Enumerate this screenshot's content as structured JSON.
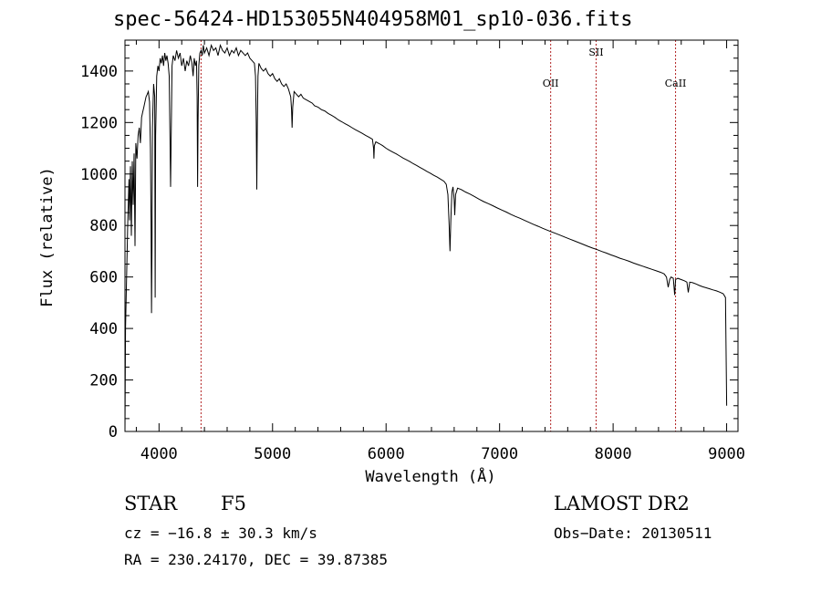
{
  "chart_data": {
    "type": "line",
    "title": "spec-56424-HD153055N404958M01_sp10-036.fits",
    "xlabel": "Wavelength (Å)",
    "ylabel": "Flux (relative)",
    "xlim": [
      3700,
      9100
    ],
    "ylim": [
      0,
      1520
    ],
    "xticks": [
      4000,
      5000,
      6000,
      7000,
      8000,
      9000
    ],
    "yticks": [
      0,
      200,
      400,
      600,
      800,
      1000,
      1200,
      1400
    ],
    "grid": false,
    "line_color": "#000000",
    "marker_color": "#b22222",
    "line_markers": [
      {
        "name": "",
        "wavelength": 4370
      },
      {
        "name": "OII",
        "wavelength": 7450
      },
      {
        "name": "SII",
        "wavelength": 7850
      },
      {
        "name": "CaII",
        "wavelength": 8550
      }
    ],
    "series": [
      {
        "name": "spectrum",
        "points": [
          [
            3700,
            0
          ],
          [
            3705,
            400
          ],
          [
            3715,
            620
          ],
          [
            3725,
            820
          ],
          [
            3735,
            980
          ],
          [
            3740,
            820
          ],
          [
            3748,
            1030
          ],
          [
            3756,
            760
          ],
          [
            3764,
            1050
          ],
          [
            3772,
            880
          ],
          [
            3780,
            1080
          ],
          [
            3788,
            720
          ],
          [
            3796,
            1120
          ],
          [
            3806,
            1060
          ],
          [
            3816,
            1150
          ],
          [
            3826,
            1180
          ],
          [
            3836,
            1120
          ],
          [
            3846,
            1220
          ],
          [
            3856,
            1240
          ],
          [
            3866,
            1260
          ],
          [
            3876,
            1280
          ],
          [
            3886,
            1300
          ],
          [
            3896,
            1310
          ],
          [
            3906,
            1320
          ],
          [
            3916,
            1280
          ],
          [
            3924,
            1100
          ],
          [
            3930,
            820
          ],
          [
            3934,
            460
          ],
          [
            3938,
            700
          ],
          [
            3942,
            1180
          ],
          [
            3952,
            1350
          ],
          [
            3962,
            1300
          ],
          [
            3966,
            520
          ],
          [
            3970,
            1150
          ],
          [
            3980,
            1380
          ],
          [
            3990,
            1420
          ],
          [
            4000,
            1400
          ],
          [
            4010,
            1450
          ],
          [
            4020,
            1430
          ],
          [
            4030,
            1460
          ],
          [
            4040,
            1420
          ],
          [
            4050,
            1470
          ],
          [
            4060,
            1440
          ],
          [
            4070,
            1460
          ],
          [
            4080,
            1430
          ],
          [
            4090,
            1380
          ],
          [
            4098,
            1100
          ],
          [
            4102,
            950
          ],
          [
            4106,
            1100
          ],
          [
            4115,
            1420
          ],
          [
            4125,
            1460
          ],
          [
            4140,
            1440
          ],
          [
            4155,
            1480
          ],
          [
            4170,
            1450
          ],
          [
            4185,
            1470
          ],
          [
            4200,
            1420
          ],
          [
            4215,
            1450
          ],
          [
            4230,
            1400
          ],
          [
            4245,
            1440
          ],
          [
            4260,
            1420
          ],
          [
            4275,
            1460
          ],
          [
            4290,
            1430
          ],
          [
            4300,
            1380
          ],
          [
            4310,
            1450
          ],
          [
            4320,
            1420
          ],
          [
            4330,
            1440
          ],
          [
            4336,
            1300
          ],
          [
            4340,
            950
          ],
          [
            4344,
            1200
          ],
          [
            4350,
            1420
          ],
          [
            4360,
            1470
          ],
          [
            4370,
            1480
          ],
          [
            4380,
            1460
          ],
          [
            4390,
            1500
          ],
          [
            4400,
            1470
          ],
          [
            4420,
            1490
          ],
          [
            4440,
            1460
          ],
          [
            4460,
            1500
          ],
          [
            4480,
            1480
          ],
          [
            4500,
            1490
          ],
          [
            4520,
            1460
          ],
          [
            4540,
            1500
          ],
          [
            4560,
            1480
          ],
          [
            4580,
            1470
          ],
          [
            4600,
            1490
          ],
          [
            4620,
            1460
          ],
          [
            4640,
            1480
          ],
          [
            4660,
            1470
          ],
          [
            4680,
            1490
          ],
          [
            4700,
            1460
          ],
          [
            4720,
            1480
          ],
          [
            4740,
            1470
          ],
          [
            4760,
            1460
          ],
          [
            4780,
            1470
          ],
          [
            4800,
            1450
          ],
          [
            4820,
            1440
          ],
          [
            4840,
            1430
          ],
          [
            4850,
            1380
          ],
          [
            4856,
            1200
          ],
          [
            4861,
            940
          ],
          [
            4866,
            1200
          ],
          [
            4872,
            1380
          ],
          [
            4880,
            1430
          ],
          [
            4900,
            1410
          ],
          [
            4920,
            1400
          ],
          [
            4940,
            1410
          ],
          [
            4960,
            1390
          ],
          [
            4980,
            1380
          ],
          [
            5000,
            1390
          ],
          [
            5020,
            1370
          ],
          [
            5040,
            1360
          ],
          [
            5060,
            1370
          ],
          [
            5080,
            1350
          ],
          [
            5100,
            1340
          ],
          [
            5120,
            1350
          ],
          [
            5140,
            1330
          ],
          [
            5160,
            1300
          ],
          [
            5167,
            1250
          ],
          [
            5172,
            1180
          ],
          [
            5178,
            1260
          ],
          [
            5190,
            1320
          ],
          [
            5210,
            1310
          ],
          [
            5230,
            1300
          ],
          [
            5250,
            1310
          ],
          [
            5270,
            1295
          ],
          [
            5290,
            1290
          ],
          [
            5310,
            1285
          ],
          [
            5330,
            1280
          ],
          [
            5350,
            1275
          ],
          [
            5370,
            1265
          ],
          [
            5400,
            1260
          ],
          [
            5430,
            1250
          ],
          [
            5460,
            1245
          ],
          [
            5490,
            1235
          ],
          [
            5520,
            1228
          ],
          [
            5550,
            1220
          ],
          [
            5580,
            1210
          ],
          [
            5610,
            1203
          ],
          [
            5640,
            1195
          ],
          [
            5670,
            1188
          ],
          [
            5700,
            1180
          ],
          [
            5730,
            1172
          ],
          [
            5760,
            1165
          ],
          [
            5790,
            1158
          ],
          [
            5820,
            1150
          ],
          [
            5850,
            1143
          ],
          [
            5880,
            1135
          ],
          [
            5890,
            1100
          ],
          [
            5893,
            1060
          ],
          [
            5897,
            1110
          ],
          [
            5910,
            1125
          ],
          [
            5940,
            1118
          ],
          [
            5970,
            1110
          ],
          [
            6000,
            1100
          ],
          [
            6030,
            1092
          ],
          [
            6060,
            1085
          ],
          [
            6090,
            1078
          ],
          [
            6120,
            1070
          ],
          [
            6150,
            1062
          ],
          [
            6180,
            1055
          ],
          [
            6210,
            1048
          ],
          [
            6240,
            1040
          ],
          [
            6270,
            1033
          ],
          [
            6300,
            1025
          ],
          [
            6330,
            1018
          ],
          [
            6360,
            1010
          ],
          [
            6390,
            1003
          ],
          [
            6420,
            995
          ],
          [
            6450,
            988
          ],
          [
            6480,
            980
          ],
          [
            6510,
            972
          ],
          [
            6530,
            960
          ],
          [
            6545,
            920
          ],
          [
            6556,
            800
          ],
          [
            6563,
            700
          ],
          [
            6570,
            820
          ],
          [
            6580,
            930
          ],
          [
            6590,
            950
          ],
          [
            6600,
            900
          ],
          [
            6605,
            840
          ],
          [
            6612,
            920
          ],
          [
            6630,
            945
          ],
          [
            6660,
            940
          ],
          [
            6700,
            930
          ],
          [
            6740,
            922
          ],
          [
            6780,
            912
          ],
          [
            6820,
            902
          ],
          [
            6860,
            893
          ],
          [
            6900,
            885
          ],
          [
            6940,
            877
          ],
          [
            6980,
            868
          ],
          [
            7020,
            860
          ],
          [
            7060,
            852
          ],
          [
            7100,
            843
          ],
          [
            7140,
            835
          ],
          [
            7180,
            828
          ],
          [
            7220,
            820
          ],
          [
            7260,
            812
          ],
          [
            7300,
            804
          ],
          [
            7340,
            797
          ],
          [
            7380,
            789
          ],
          [
            7420,
            782
          ],
          [
            7460,
            775
          ],
          [
            7500,
            768
          ],
          [
            7540,
            761
          ],
          [
            7580,
            754
          ],
          [
            7620,
            747
          ],
          [
            7660,
            740
          ],
          [
            7700,
            733
          ],
          [
            7740,
            726
          ],
          [
            7780,
            719
          ],
          [
            7820,
            712
          ],
          [
            7860,
            706
          ],
          [
            7900,
            699
          ],
          [
            7940,
            693
          ],
          [
            7980,
            686
          ],
          [
            8020,
            680
          ],
          [
            8060,
            673
          ],
          [
            8100,
            667
          ],
          [
            8140,
            661
          ],
          [
            8180,
            654
          ],
          [
            8220,
            648
          ],
          [
            8260,
            642
          ],
          [
            8300,
            636
          ],
          [
            8340,
            630
          ],
          [
            8380,
            624
          ],
          [
            8420,
            618
          ],
          [
            8450,
            612
          ],
          [
            8470,
            600
          ],
          [
            8485,
            560
          ],
          [
            8498,
            590
          ],
          [
            8510,
            600
          ],
          [
            8530,
            595
          ],
          [
            8542,
            530
          ],
          [
            8550,
            590
          ],
          [
            8570,
            595
          ],
          [
            8600,
            590
          ],
          [
            8630,
            585
          ],
          [
            8650,
            580
          ],
          [
            8662,
            540
          ],
          [
            8675,
            580
          ],
          [
            8700,
            578
          ],
          [
            8730,
            573
          ],
          [
            8760,
            567
          ],
          [
            8790,
            562
          ],
          [
            8820,
            558
          ],
          [
            8850,
            554
          ],
          [
            8880,
            550
          ],
          [
            8910,
            546
          ],
          [
            8940,
            541
          ],
          [
            8970,
            535
          ],
          [
            8990,
            520
          ],
          [
            9000,
            100
          ]
        ]
      }
    ]
  },
  "footer": {
    "object_type": "STAR",
    "spectral_class": "F5",
    "survey": "LAMOST DR2",
    "redshift": "cz = −16.8 ± 30.3 km/s",
    "obs_date": "Obs−Date: 20130511",
    "coords": "RA = 230.24170, DEC =  39.87385"
  }
}
